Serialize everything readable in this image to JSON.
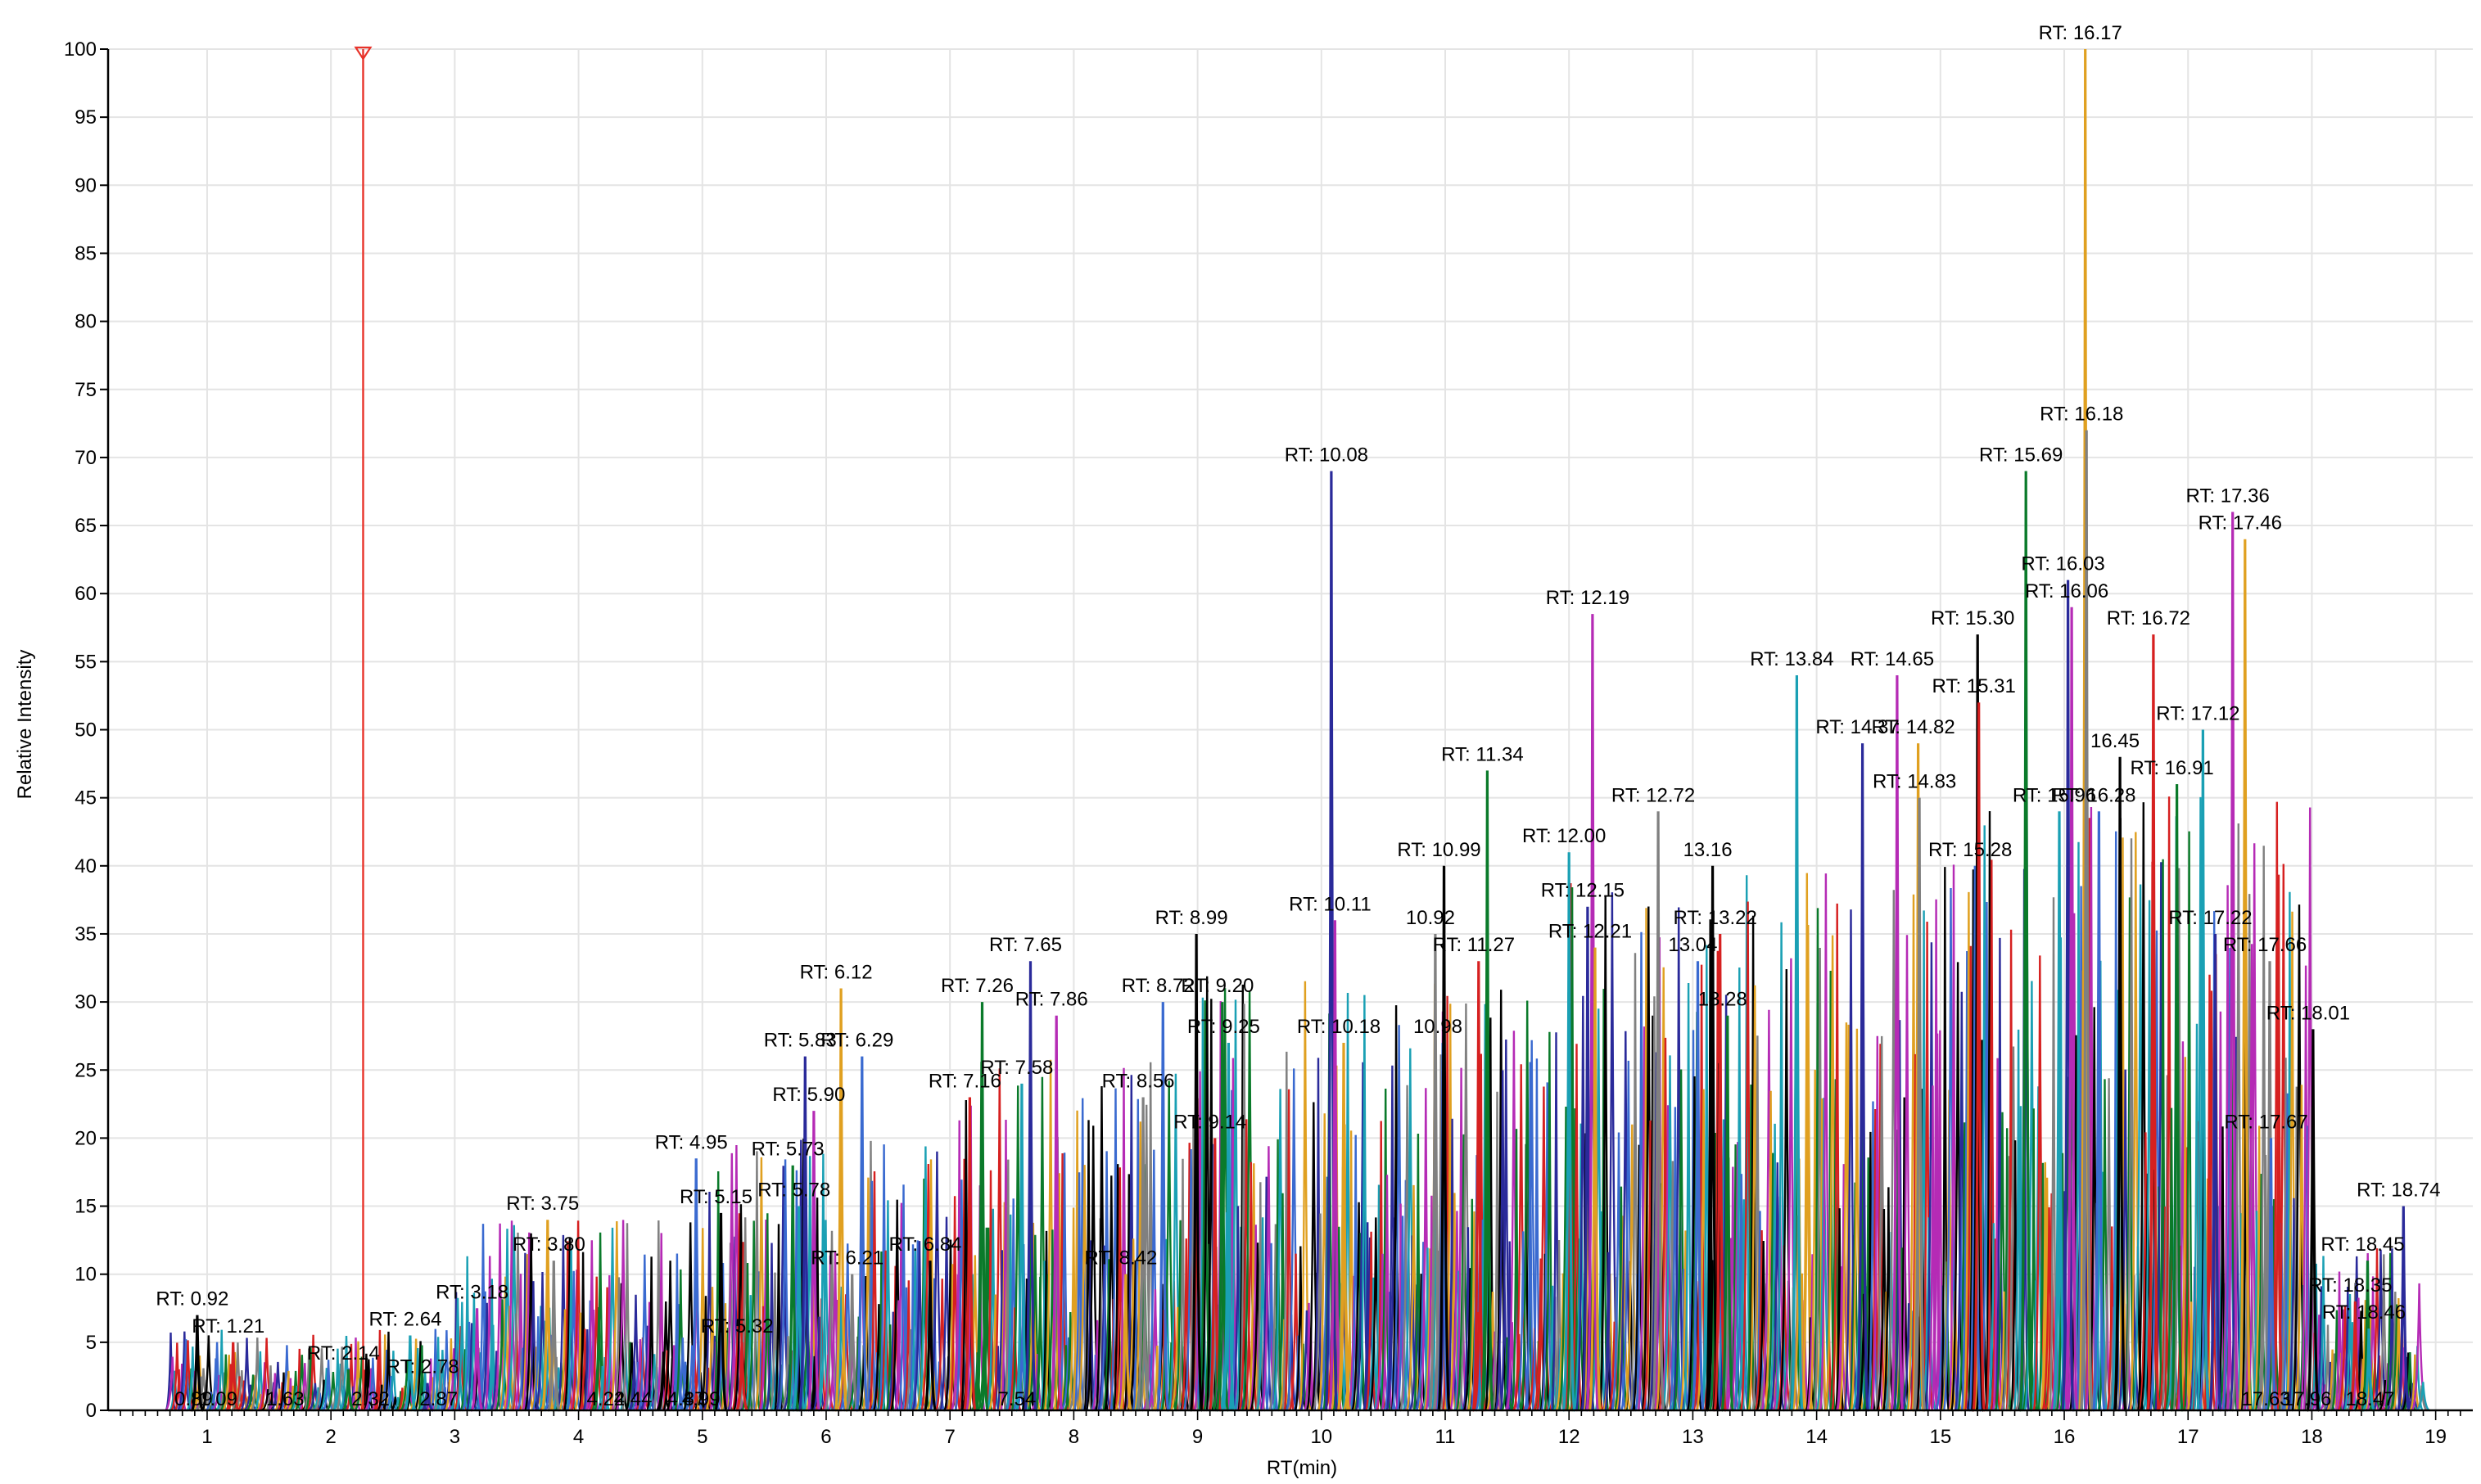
{
  "chart_data": {
    "type": "line",
    "title": "",
    "xlabel": "RT(min)",
    "ylabel": "Relative Intensity",
    "xlim": [
      0.2,
      19.3
    ],
    "ylim": [
      0,
      100
    ],
    "x_ticks": [
      1,
      2,
      3,
      4,
      5,
      6,
      7,
      8,
      9,
      10,
      11,
      12,
      13,
      14,
      15,
      16,
      17,
      18,
      19
    ],
    "y_ticks": [
      0,
      5,
      10,
      15,
      20,
      25,
      30,
      35,
      40,
      45,
      50,
      55,
      60,
      65,
      70,
      75,
      80,
      85,
      90,
      95,
      100
    ],
    "grid": true,
    "legend": "none",
    "marker": {
      "x": 2.26,
      "color": "#e8332a"
    },
    "series_colors": [
      "#000000",
      "#d62020",
      "#0a7a2a",
      "#1aa0b4",
      "#2a2a9a",
      "#b52bb5",
      "#e0a020",
      "#808080",
      "#3a6ad0"
    ],
    "peaks": [
      {
        "x": 0.92,
        "y": 7.0,
        "label": "RT: 0.92"
      },
      {
        "x": 1.21,
        "y": 5.0,
        "label": "RT: 1.21"
      },
      {
        "x": 2.14,
        "y": 3.0,
        "label": "RT: 2.14"
      },
      {
        "x": 2.64,
        "y": 5.5,
        "label": "RT: 2.64"
      },
      {
        "x": 2.78,
        "y": 2.0,
        "label": "RT: 2.78"
      },
      {
        "x": 3.18,
        "y": 7.5,
        "label": "RT: 3.18"
      },
      {
        "x": 3.75,
        "y": 14.0,
        "label": "RT: 3.75"
      },
      {
        "x": 3.8,
        "y": 11.0,
        "label": "RT: 3.80"
      },
      {
        "x": 4.95,
        "y": 18.5,
        "label": "RT: 4.95"
      },
      {
        "x": 5.15,
        "y": 14.5,
        "label": "RT: 5.15"
      },
      {
        "x": 5.32,
        "y": 5.0,
        "label": "RT: 5.32"
      },
      {
        "x": 5.73,
        "y": 18.0,
        "label": "RT: 5.73"
      },
      {
        "x": 5.78,
        "y": 15.0,
        "label": "RT: 5.78"
      },
      {
        "x": 5.83,
        "y": 26.0,
        "label": "RT: 5.83"
      },
      {
        "x": 5.9,
        "y": 22.0,
        "label": "RT: 5.90"
      },
      {
        "x": 6.12,
        "y": 31.0,
        "label": "RT: 6.12"
      },
      {
        "x": 6.21,
        "y": 10.0,
        "label": "RT: 6.21"
      },
      {
        "x": 6.29,
        "y": 26.0,
        "label": "RT: 6.29"
      },
      {
        "x": 6.84,
        "y": 11.0,
        "label": "RT: 6.84"
      },
      {
        "x": 7.16,
        "y": 23.0,
        "label": "RT: 7.16"
      },
      {
        "x": 7.26,
        "y": 30.0,
        "label": "RT: 7.26"
      },
      {
        "x": 7.58,
        "y": 24.0,
        "label": "RT: 7.58"
      },
      {
        "x": 7.65,
        "y": 33.0,
        "label": "RT: 7.65"
      },
      {
        "x": 7.86,
        "y": 29.0,
        "label": "RT: 7.86"
      },
      {
        "x": 8.42,
        "y": 10.0,
        "label": "RT: 8.42"
      },
      {
        "x": 8.56,
        "y": 23.0,
        "label": "RT: 8.56"
      },
      {
        "x": 8.72,
        "y": 30.0,
        "label": "RT: 8.72"
      },
      {
        "x": 8.99,
        "y": 35.0,
        "label": "RT: 8.99"
      },
      {
        "x": 9.14,
        "y": 20.0,
        "label": "RT: 9.14"
      },
      {
        "x": 9.2,
        "y": 30.0,
        "label": "RT: 9.20"
      },
      {
        "x": 9.25,
        "y": 27.0,
        "label": "RT: 9.25"
      },
      {
        "x": 10.08,
        "y": 69.0,
        "label": "RT: 10.08"
      },
      {
        "x": 10.11,
        "y": 36.0,
        "label": "RT: 10.11"
      },
      {
        "x": 10.18,
        "y": 27.0,
        "label": "RT: 10.18"
      },
      {
        "x": 10.92,
        "y": 35.0,
        "label": "10.92"
      },
      {
        "x": 10.98,
        "y": 27.0,
        "label": "10.98"
      },
      {
        "x": 10.99,
        "y": 40.0,
        "label": "RT: 10.99"
      },
      {
        "x": 11.27,
        "y": 33.0,
        "label": "RT: 11.27"
      },
      {
        "x": 11.34,
        "y": 47.0,
        "label": "RT: 11.34"
      },
      {
        "x": 12.0,
        "y": 41.0,
        "label": "RT: 12.00"
      },
      {
        "x": 12.15,
        "y": 37.0,
        "label": "RT: 12.15"
      },
      {
        "x": 12.19,
        "y": 58.5,
        "label": "RT: 12.19"
      },
      {
        "x": 12.21,
        "y": 34.0,
        "label": "RT: 12.21"
      },
      {
        "x": 12.72,
        "y": 44.0,
        "label": "RT: 12.72"
      },
      {
        "x": 13.04,
        "y": 33.0,
        "label": "13.04"
      },
      {
        "x": 13.16,
        "y": 40.0,
        "label": "13.16"
      },
      {
        "x": 13.22,
        "y": 35.0,
        "label": "RT: 13.22"
      },
      {
        "x": 13.28,
        "y": 29.0,
        "label": "13.28"
      },
      {
        "x": 13.84,
        "y": 54.0,
        "label": "RT: 13.84"
      },
      {
        "x": 14.37,
        "y": 49.0,
        "label": "RT: 14.37"
      },
      {
        "x": 14.65,
        "y": 54.0,
        "label": "RT: 14.65"
      },
      {
        "x": 14.82,
        "y": 49.0,
        "label": "RT: 14.82"
      },
      {
        "x": 14.83,
        "y": 45.0,
        "label": "RT: 14.83"
      },
      {
        "x": 15.28,
        "y": 40.0,
        "label": "RT: 15.28"
      },
      {
        "x": 15.3,
        "y": 57.0,
        "label": "RT: 15.30"
      },
      {
        "x": 15.31,
        "y": 52.0,
        "label": "RT: 15.31"
      },
      {
        "x": 15.69,
        "y": 69.0,
        "label": "RT: 15.69"
      },
      {
        "x": 15.96,
        "y": 44.0,
        "label": "RT: 15.96"
      },
      {
        "x": 16.03,
        "y": 61.0,
        "label": "RT: 16.03"
      },
      {
        "x": 16.06,
        "y": 59.0,
        "label": "RT: 16.06"
      },
      {
        "x": 16.17,
        "y": 100.0,
        "label": "RT: 16.17"
      },
      {
        "x": 16.18,
        "y": 72.0,
        "label": "RT: 16.18"
      },
      {
        "x": 16.28,
        "y": 44.0,
        "label": "RT: 16.28"
      },
      {
        "x": 16.45,
        "y": 48.0,
        "label": "16.45"
      },
      {
        "x": 16.72,
        "y": 57.0,
        "label": "RT: 16.72"
      },
      {
        "x": 16.91,
        "y": 46.0,
        "label": "RT: 16.91"
      },
      {
        "x": 17.12,
        "y": 50.0,
        "label": "RT: 17.12"
      },
      {
        "x": 17.22,
        "y": 35.0,
        "label": "RT: 17.22"
      },
      {
        "x": 17.36,
        "y": 66.0,
        "label": "RT: 17.36"
      },
      {
        "x": 17.46,
        "y": 64.0,
        "label": "RT: 17.46"
      },
      {
        "x": 17.66,
        "y": 33.0,
        "label": "RT: 17.66"
      },
      {
        "x": 17.67,
        "y": 20.0,
        "label": "RT: 17.67"
      },
      {
        "x": 18.01,
        "y": 28.0,
        "label": "RT: 18.01"
      },
      {
        "x": 18.35,
        "y": 8.0,
        "label": "RT: 18.35"
      },
      {
        "x": 18.45,
        "y": 11.0,
        "label": "RT: 18.45"
      },
      {
        "x": 18.46,
        "y": 6.0,
        "label": "RT: 18.46"
      },
      {
        "x": 18.74,
        "y": 15.0,
        "label": "RT: 18.74"
      }
    ],
    "small_labels": [
      {
        "x": 0.89,
        "label": "0.89"
      },
      {
        "x": 1.09,
        "label": "1.09"
      },
      {
        "x": 1.63,
        "label": "1.63"
      },
      {
        "x": 2.32,
        "label": "2.32"
      },
      {
        "x": 2.87,
        "label": "2.87"
      },
      {
        "x": 4.22,
        "label": "4.22"
      },
      {
        "x": 4.44,
        "label": "4.44"
      },
      {
        "x": 4.87,
        "label": "4.87"
      },
      {
        "x": 4.99,
        "label": "4.99"
      },
      {
        "x": 7.54,
        "label": "7.54"
      },
      {
        "x": 17.63,
        "label": "17.63"
      },
      {
        "x": 17.96,
        "label": "17.96"
      },
      {
        "x": 18.47,
        "label": "18.47"
      }
    ]
  }
}
